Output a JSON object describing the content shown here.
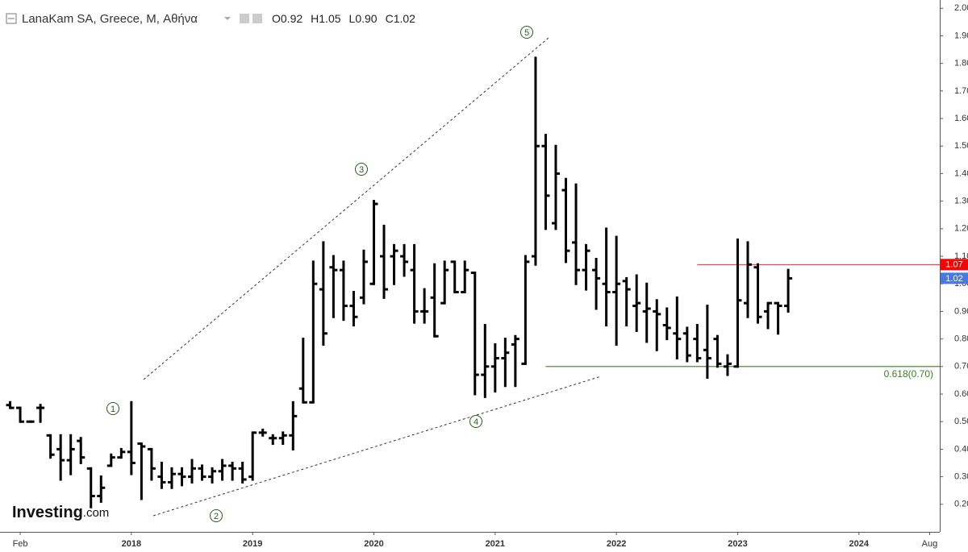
{
  "chart_data": {
    "type": "ohlc",
    "header": {
      "title": "LanaKam SA, Greece, M, Αθήνα",
      "fields": [
        {
          "key": "O",
          "value": "0.92"
        },
        {
          "key": "H",
          "value": "1.05"
        },
        {
          "key": "L",
          "value": "0.90"
        },
        {
          "key": "C",
          "value": "1.02"
        }
      ]
    },
    "watermark": {
      "brand": "Investing",
      "suffix": ".com"
    },
    "color": "#000000",
    "x": [
      "2017-01",
      "2017-02",
      "2017-03",
      "2017-04",
      "2017-05",
      "2017-06",
      "2017-07",
      "2017-08",
      "2017-09",
      "2017-10",
      "2017-11",
      "2017-12",
      "2018-01",
      "2018-02",
      "2018-03",
      "2018-04",
      "2018-05",
      "2018-06",
      "2018-07",
      "2018-08",
      "2018-09",
      "2018-10",
      "2018-11",
      "2018-12",
      "2019-01",
      "2019-02",
      "2019-03",
      "2019-04",
      "2019-05",
      "2019-06",
      "2019-07",
      "2019-08",
      "2019-09",
      "2019-10",
      "2019-11",
      "2019-12",
      "2020-01",
      "2020-02",
      "2020-03",
      "2020-04",
      "2020-05",
      "2020-06",
      "2020-07",
      "2020-08",
      "2020-09",
      "2020-10",
      "2020-11",
      "2020-12",
      "2021-01",
      "2021-02",
      "2021-03",
      "2021-04",
      "2021-05",
      "2021-06",
      "2021-07",
      "2021-08",
      "2021-09",
      "2021-10",
      "2021-11",
      "2021-12",
      "2022-01",
      "2022-02",
      "2022-03",
      "2022-04",
      "2022-05",
      "2022-06",
      "2022-07",
      "2022-08",
      "2022-09",
      "2022-10",
      "2022-11",
      "2022-12",
      "2023-01",
      "2023-02",
      "2023-03",
      "2023-04",
      "2023-05",
      "2023-06"
    ],
    "open": [
      0.56,
      0.55,
      0.5,
      0.55,
      0.45,
      0.4,
      0.36,
      0.43,
      0.33,
      0.23,
      0.34,
      0.37,
      0.39,
      0.42,
      0.4,
      0.3,
      0.28,
      0.31,
      0.3,
      0.33,
      0.3,
      0.32,
      0.34,
      0.33,
      0.3,
      0.46,
      0.44,
      0.44,
      0.45,
      0.62,
      0.57,
      0.98,
      1.06,
      1.05,
      0.92,
      0.95,
      1.0,
      1.1,
      1.1,
      1.1,
      1.05,
      0.9,
      0.95,
      0.93,
      1.08,
      0.97,
      1.04,
      0.67,
      0.7,
      0.73,
      0.78,
      0.71,
      1.1,
      1.5,
      1.22,
      1.34,
      1.15,
      1.05,
      1.05,
      1.0,
      0.97,
      1.01,
      0.92,
      0.9,
      0.9,
      0.85,
      0.82,
      0.82,
      0.8,
      0.76,
      0.8,
      0.7,
      0.7,
      0.93,
      1.06,
      0.9,
      0.93,
      0.92
    ],
    "high": [
      0.57,
      0.55,
      0.5,
      0.56,
      0.45,
      0.45,
      0.45,
      0.44,
      0.33,
      0.3,
      0.38,
      0.4,
      0.57,
      0.42,
      0.4,
      0.35,
      0.33,
      0.33,
      0.36,
      0.34,
      0.33,
      0.36,
      0.35,
      0.35,
      0.46,
      0.47,
      0.45,
      0.46,
      0.57,
      0.8,
      1.08,
      1.15,
      1.1,
      1.08,
      0.97,
      1.12,
      1.3,
      1.21,
      1.14,
      1.14,
      1.14,
      0.98,
      1.07,
      1.08,
      1.08,
      1.08,
      1.04,
      0.85,
      0.78,
      0.8,
      0.81,
      1.1,
      1.82,
      1.54,
      1.5,
      1.38,
      1.36,
      1.14,
      1.09,
      1.2,
      1.17,
      1.02,
      1.03,
      1.0,
      0.94,
      0.91,
      0.95,
      0.84,
      0.85,
      0.92,
      0.81,
      0.74,
      1.16,
      1.15,
      1.07,
      0.93,
      0.93,
      1.05
    ],
    "low": [
      0.55,
      0.5,
      0.5,
      0.5,
      0.37,
      0.29,
      0.31,
      0.35,
      0.19,
      0.21,
      0.34,
      0.37,
      0.31,
      0.22,
      0.29,
      0.26,
      0.26,
      0.27,
      0.28,
      0.29,
      0.28,
      0.29,
      0.29,
      0.28,
      0.29,
      0.45,
      0.42,
      0.42,
      0.4,
      0.57,
      0.57,
      0.78,
      0.88,
      0.87,
      0.85,
      0.93,
      1.0,
      0.95,
      1.0,
      1.03,
      0.86,
      0.86,
      0.81,
      0.93,
      0.97,
      0.97,
      0.6,
      0.59,
      0.61,
      0.63,
      0.63,
      0.71,
      1.07,
      1.2,
      1.2,
      1.08,
      1.0,
      0.98,
      0.91,
      0.85,
      0.78,
      0.85,
      0.83,
      0.79,
      0.76,
      0.8,
      0.73,
      0.72,
      0.72,
      0.66,
      0.7,
      0.67,
      0.7,
      0.88,
      0.86,
      0.84,
      0.82,
      0.9
    ],
    "close": [
      0.55,
      0.5,
      0.5,
      0.55,
      0.38,
      0.36,
      0.4,
      0.37,
      0.23,
      0.26,
      0.37,
      0.39,
      0.35,
      0.41,
      0.33,
      0.28,
      0.31,
      0.3,
      0.33,
      0.3,
      0.32,
      0.34,
      0.33,
      0.29,
      0.46,
      0.46,
      0.44,
      0.45,
      0.52,
      0.57,
      1.0,
      0.82,
      1.05,
      0.92,
      0.88,
      1.08,
      1.29,
      0.98,
      1.12,
      1.08,
      0.9,
      0.9,
      0.81,
      1.05,
      0.97,
      1.05,
      0.67,
      0.7,
      0.73,
      0.75,
      0.8,
      1.08,
      1.5,
      1.32,
      1.4,
      1.12,
      1.05,
      1.12,
      1.02,
      0.97,
      1.0,
      0.98,
      0.93,
      0.91,
      0.89,
      0.84,
      0.8,
      0.74,
      0.73,
      0.73,
      0.71,
      0.71,
      0.94,
      1.07,
      0.88,
      0.93,
      0.92,
      1.02
    ],
    "xlim": [
      "2016-12",
      "2024-09"
    ],
    "xticks": [
      {
        "value": "2017-02",
        "label": "Feb"
      },
      {
        "value": "2018-01",
        "label": "2018"
      },
      {
        "value": "2019-01",
        "label": "2019"
      },
      {
        "value": "2020-01",
        "label": "2020"
      },
      {
        "value": "2021-01",
        "label": "2021"
      },
      {
        "value": "2022-01",
        "label": "2022"
      },
      {
        "value": "2023-01",
        "label": "2023"
      },
      {
        "value": "2024-01",
        "label": "2024"
      },
      {
        "value": "2024-08",
        "label": "Aug"
      }
    ],
    "ylim": [
      0.1,
      2.03
    ],
    "yticks": [
      {
        "value": 0.2,
        "label": "0.20"
      },
      {
        "value": 0.3,
        "label": "0.30"
      },
      {
        "value": 0.4,
        "label": "0.40"
      },
      {
        "value": 0.5,
        "label": "0.50"
      },
      {
        "value": 0.6,
        "label": "0.60"
      },
      {
        "value": 0.7,
        "label": "0.70"
      },
      {
        "value": 0.8,
        "label": "0.80"
      },
      {
        "value": 0.9,
        "label": "0.90"
      },
      {
        "value": 1.0,
        "label": "1.00"
      },
      {
        "value": 1.1,
        "label": "1.10"
      },
      {
        "value": 1.2,
        "label": "1.20"
      },
      {
        "value": 1.3,
        "label": "1.30"
      },
      {
        "value": 1.4,
        "label": "1.40"
      },
      {
        "value": 1.5,
        "label": "1.50"
      },
      {
        "value": 1.6,
        "label": "1.60"
      },
      {
        "value": 1.7,
        "label": "1.70"
      },
      {
        "value": 1.8,
        "label": "1.80"
      },
      {
        "value": 1.9,
        "label": "1.90"
      },
      {
        "value": 2.0,
        "label": "2.00"
      }
    ],
    "grid": false,
    "fib_line": {
      "value": 0.7,
      "label": "0.618(0.70)",
      "color": "#3a7d22"
    },
    "price_line": {
      "value": 1.07,
      "label": "1.07",
      "color": "#ff0000"
    },
    "last_price": {
      "value": 1.02,
      "label": "1.02",
      "color": "#4a78e0"
    },
    "waves": [
      "1",
      "2",
      "3",
      "4",
      "5"
    ]
  }
}
